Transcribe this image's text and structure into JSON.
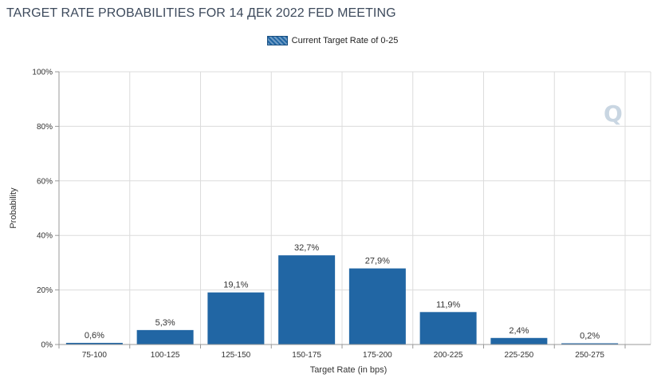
{
  "title": "TARGET RATE PROBABILITIES FOR 14 ДЕК 2022 FED MEETING",
  "legend": {
    "label": "Current Target Rate of 0-25",
    "color": "#2166a4"
  },
  "chart_data": {
    "type": "bar",
    "categories": [
      "75-100",
      "100-125",
      "125-150",
      "150-175",
      "175-200",
      "200-225",
      "225-250",
      "250-275"
    ],
    "series": [
      {
        "name": "Current Target Rate of 0-25",
        "values": [
          0.6,
          5.3,
          19.1,
          32.7,
          27.9,
          11.9,
          2.4,
          0.2
        ]
      }
    ],
    "data_labels": [
      "0,6%",
      "5,3%",
      "19,1%",
      "32,7%",
      "27,9%",
      "11,9%",
      "2,4%",
      "0,2%"
    ],
    "xlabel": "Target Rate (in bps)",
    "ylabel": "Probability",
    "ylim": [
      0,
      100
    ],
    "yticks": [
      0,
      20,
      40,
      60,
      80,
      100
    ],
    "ytick_labels": [
      "0%",
      "20%",
      "40%",
      "60%",
      "80%",
      "100%"
    ],
    "grid": true,
    "legend_position": "top-center",
    "bar_color": "#2166a4"
  }
}
